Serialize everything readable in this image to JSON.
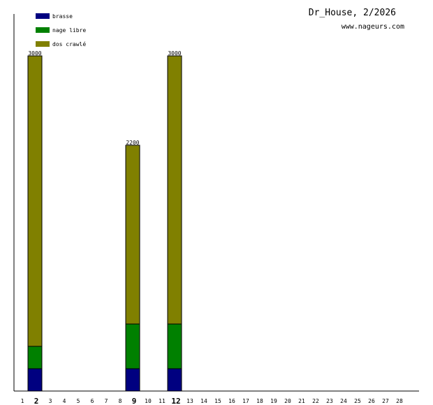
{
  "header": {
    "title": "Dr_House, 2/2026",
    "site": "www.nageurs.com"
  },
  "chart_data": {
    "type": "bar",
    "stacked": true,
    "title": "Dr_House, 2/2026",
    "xlabel": "",
    "ylabel": "",
    "categories": [
      "1",
      "2",
      "3",
      "4",
      "5",
      "6",
      "7",
      "8",
      "9",
      "10",
      "11",
      "12",
      "13",
      "14",
      "15",
      "16",
      "17",
      "18",
      "19",
      "20",
      "21",
      "22",
      "23",
      "24",
      "25",
      "26",
      "27",
      "28"
    ],
    "highlighted_categories": [
      "2",
      "9",
      "12"
    ],
    "series": [
      {
        "name": "brasse",
        "color": "#000080",
        "values": [
          0,
          200,
          0,
          0,
          0,
          0,
          0,
          0,
          200,
          0,
          0,
          200,
          0,
          0,
          0,
          0,
          0,
          0,
          0,
          0,
          0,
          0,
          0,
          0,
          0,
          0,
          0,
          0
        ]
      },
      {
        "name": "nage libre",
        "color": "#008000",
        "values": [
          0,
          200,
          0,
          0,
          0,
          0,
          0,
          0,
          400,
          0,
          0,
          400,
          0,
          0,
          0,
          0,
          0,
          0,
          0,
          0,
          0,
          0,
          0,
          0,
          0,
          0,
          0,
          0
        ]
      },
      {
        "name": "dos crawlé",
        "color": "#808000",
        "values": [
          0,
          2600,
          0,
          0,
          0,
          0,
          0,
          0,
          1600,
          0,
          0,
          2400,
          0,
          0,
          0,
          0,
          0,
          0,
          0,
          0,
          0,
          0,
          0,
          0,
          0,
          0,
          0,
          0
        ]
      }
    ],
    "totals": [
      0,
      3000,
      0,
      0,
      0,
      0,
      0,
      0,
      2200,
      0,
      0,
      3000,
      0,
      0,
      0,
      0,
      0,
      0,
      0,
      0,
      0,
      0,
      0,
      0,
      0,
      0,
      0,
      0
    ],
    "ylim": [
      0,
      3000
    ],
    "legend_position": "top-left",
    "grid": false
  }
}
